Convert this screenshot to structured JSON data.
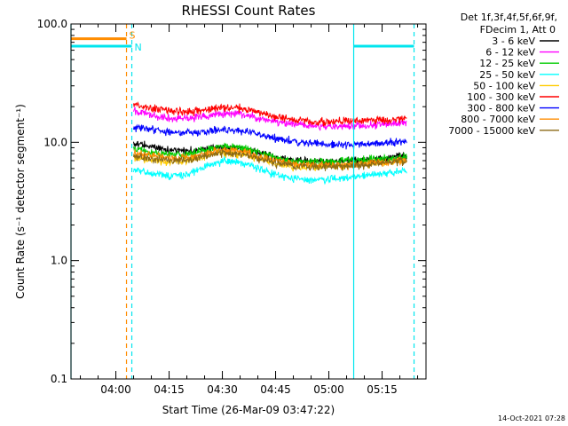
{
  "chart_data": {
    "type": "line",
    "title": "RHESSI Count Rates",
    "xlabel": "Start Time (26-Mar-09 03:47:22)",
    "ylabel": "Count Rate (s⁻¹ detector segment⁻¹)",
    "y_scale": "log",
    "ylim": [
      0.1,
      100
    ],
    "y_ticks": [
      {
        "value": 0.1,
        "label": "0.1"
      },
      {
        "value": 1,
        "label": "1.0"
      },
      {
        "value": 10,
        "label": "10.0"
      },
      {
        "value": 100,
        "label": "100.0"
      }
    ],
    "xlim": [
      "03:47:22",
      "05:27:22"
    ],
    "x_ticks": [
      {
        "value": "04:00",
        "label": "04:00"
      },
      {
        "value": "04:15",
        "label": "04:15"
      },
      {
        "value": "04:30",
        "label": "04:30"
      },
      {
        "value": "04:45",
        "label": "04:45"
      },
      {
        "value": "05:00",
        "label": "05:00"
      },
      {
        "value": "05:15",
        "label": "05:15"
      }
    ],
    "x": [
      "04:05",
      "04:10",
      "04:15",
      "04:20",
      "04:25",
      "04:30",
      "04:35",
      "04:40",
      "04:45",
      "04:50",
      "04:55",
      "05:00",
      "05:05",
      "05:10",
      "05:15",
      "05:20"
    ],
    "legend_header": [
      "Det 1f,3f,4f,5f,6f,9f,",
      "FDecim 1, Att 0"
    ],
    "legend_position": "right",
    "series": [
      {
        "name": "3 - 6 keV",
        "color": "#000000",
        "values": [
          9.8,
          9.2,
          8.6,
          8.4,
          8.8,
          9.1,
          8.9,
          8.2,
          7.4,
          7.0,
          6.9,
          6.9,
          7.0,
          7.1,
          7.3,
          7.6
        ]
      },
      {
        "name": "6 - 12 keV",
        "color": "#ff00ff",
        "values": [
          18.5,
          17.0,
          16.0,
          16.0,
          16.5,
          17.5,
          17.5,
          16.0,
          15.0,
          14.2,
          13.8,
          13.5,
          13.6,
          13.8,
          14.2,
          14.6
        ]
      },
      {
        "name": "12 - 25 keV",
        "color": "#00cc00",
        "values": [
          8.8,
          8.2,
          7.8,
          8.0,
          8.5,
          9.3,
          9.0,
          8.2,
          7.4,
          6.9,
          6.8,
          6.9,
          7.1,
          7.2,
          7.3,
          7.4
        ]
      },
      {
        "name": "25 - 50 keV",
        "color": "#00ffff",
        "values": [
          5.8,
          5.5,
          5.2,
          5.4,
          6.2,
          7.0,
          6.8,
          6.0,
          5.3,
          5.0,
          4.8,
          4.9,
          5.0,
          5.2,
          5.4,
          5.6
        ]
      },
      {
        "name": "50 - 100 keV",
        "color": "#ffcc00",
        "values": [
          7.4,
          7.1,
          6.8,
          7.0,
          7.5,
          8.2,
          8.0,
          7.3,
          6.6,
          6.3,
          6.2,
          6.3,
          6.4,
          6.6,
          6.8,
          7.0
        ]
      },
      {
        "name": "100 - 300 keV",
        "color": "#ff0000",
        "values": [
          21.0,
          19.5,
          18.5,
          18.2,
          18.8,
          19.5,
          19.5,
          18.0,
          16.5,
          15.5,
          15.0,
          14.8,
          15.0,
          15.2,
          15.5,
          15.8
        ]
      },
      {
        "name": "300 - 800 keV",
        "color": "#0000ff",
        "values": [
          13.5,
          12.8,
          12.2,
          12.0,
          12.3,
          12.8,
          12.6,
          11.7,
          10.8,
          10.2,
          9.8,
          9.6,
          9.6,
          9.7,
          9.8,
          10.0
        ]
      },
      {
        "name": "800 - 7000 keV",
        "color": "#ff8c00",
        "values": [
          8.2,
          7.8,
          7.4,
          7.5,
          8.0,
          8.6,
          8.4,
          7.7,
          7.0,
          6.6,
          6.4,
          6.4,
          6.5,
          6.6,
          6.8,
          7.0
        ]
      },
      {
        "name": "7000 - 15000 keV",
        "color": "#8b6914",
        "values": [
          7.6,
          7.3,
          7.0,
          7.1,
          7.6,
          8.2,
          8.0,
          7.3,
          6.7,
          6.4,
          6.2,
          6.2,
          6.3,
          6.5,
          6.7,
          6.9
        ]
      }
    ],
    "flags": [
      {
        "label": "S",
        "color": "#ff8c00",
        "level": 75,
        "start": "03:47:22",
        "end": "04:03:00"
      },
      {
        "label": "N",
        "color": "#00e5ee",
        "level": 65,
        "start": "03:47:22",
        "end": "04:04:30"
      },
      {
        "label": "",
        "color": "#00e5ee",
        "level": 65,
        "start": "05:07:00",
        "end": "05:24:00"
      }
    ],
    "vertical_lines": [
      {
        "time": "03:47:22",
        "color": "#00e5ee",
        "style": "solid"
      },
      {
        "time": "04:03:00",
        "color": "#ff8c00",
        "style": "dashed"
      },
      {
        "time": "04:04:30",
        "color": "#00e5ee",
        "style": "dashed"
      },
      {
        "time": "05:07:00",
        "color": "#00e5ee",
        "style": "solid"
      },
      {
        "time": "05:24:00",
        "color": "#00e5ee",
        "style": "dashed"
      }
    ],
    "data_gap": [
      "05:22",
      "05:23"
    ],
    "grid": false,
    "colors": {
      "axis": "#000000",
      "background": "#ffffff"
    }
  },
  "footer": {
    "timestamp": "14-Oct-2021 07:28"
  }
}
